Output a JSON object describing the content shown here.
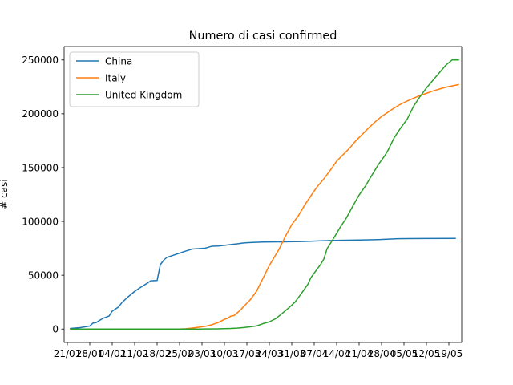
{
  "chart_data": {
    "type": "line",
    "title": "Numero di casi confirmed",
    "xlabel": "",
    "ylabel": "# casi",
    "x_tick_labels": [
      "21/01",
      "28/01",
      "04/02",
      "11/02",
      "18/02",
      "25/02",
      "03/03",
      "10/03",
      "17/03",
      "24/03",
      "31/03",
      "07/04",
      "14/04",
      "21/04",
      "28/04",
      "05/05",
      "12/05",
      "19/05"
    ],
    "y_tick_labels": [
      "0",
      "50000",
      "100000",
      "150000",
      "200000",
      "250000"
    ],
    "y_ticks": [
      0,
      50000,
      100000,
      150000,
      200000,
      250000
    ],
    "x_range_days": [
      -2,
      122
    ],
    "ylim": [
      -12500,
      262500
    ],
    "x_start_date": "2020-01-22",
    "grid": false,
    "legend_position": "top-left",
    "series": [
      {
        "name": "China",
        "color": "#1f77b4",
        "points": [
          [
            0,
            548
          ],
          [
            3,
            1300
          ],
          [
            6,
            2800
          ],
          [
            7,
            5500
          ],
          [
            8,
            6000
          ],
          [
            10,
            9800
          ],
          [
            12,
            12000
          ],
          [
            13,
            16600
          ],
          [
            15,
            20600
          ],
          [
            16,
            24500
          ],
          [
            18,
            30000
          ],
          [
            20,
            35000
          ],
          [
            22,
            39000
          ],
          [
            24,
            42700
          ],
          [
            25,
            44800
          ],
          [
            27,
            45100
          ],
          [
            28,
            59800
          ],
          [
            29,
            63800
          ],
          [
            30,
            66500
          ],
          [
            32,
            68500
          ],
          [
            34,
            70500
          ],
          [
            36,
            72500
          ],
          [
            38,
            74300
          ],
          [
            40,
            74700
          ],
          [
            42,
            75100
          ],
          [
            44,
            76900
          ],
          [
            46,
            77100
          ],
          [
            48,
            77800
          ],
          [
            50,
            78500
          ],
          [
            52,
            79200
          ],
          [
            54,
            80000
          ],
          [
            56,
            80400
          ],
          [
            60,
            80800
          ],
          [
            66,
            81000
          ],
          [
            72,
            81300
          ],
          [
            78,
            82000
          ],
          [
            84,
            82400
          ],
          [
            90,
            82700
          ],
          [
            96,
            83100
          ],
          [
            102,
            83900
          ],
          [
            110,
            84100
          ],
          [
            120,
            84200
          ]
        ]
      },
      {
        "name": "Italy",
        "color": "#ff7f0e",
        "points": [
          [
            0,
            0
          ],
          [
            30,
            0
          ],
          [
            32,
            3
          ],
          [
            34,
            3
          ],
          [
            36,
            300
          ],
          [
            38,
            900
          ],
          [
            40,
            1700
          ],
          [
            42,
            2500
          ],
          [
            44,
            3900
          ],
          [
            46,
            6000
          ],
          [
            48,
            9000
          ],
          [
            49,
            10000
          ],
          [
            50,
            12000
          ],
          [
            51,
            12500
          ],
          [
            52,
            15000
          ],
          [
            53,
            17600
          ],
          [
            54,
            21000
          ],
          [
            56,
            27000
          ],
          [
            58,
            35000
          ],
          [
            60,
            47000
          ],
          [
            62,
            59000
          ],
          [
            64,
            69000
          ],
          [
            65,
            74000
          ],
          [
            66,
            80000
          ],
          [
            67,
            86000
          ],
          [
            69,
            97000
          ],
          [
            71,
            105000
          ],
          [
            73,
            115000
          ],
          [
            75,
            124000
          ],
          [
            77,
            132500
          ],
          [
            79,
            139500
          ],
          [
            81,
            147500
          ],
          [
            83,
            156000
          ],
          [
            85,
            162000
          ],
          [
            87,
            168000
          ],
          [
            89,
            175000
          ],
          [
            91,
            181000
          ],
          [
            93,
            187000
          ],
          [
            95,
            192500
          ],
          [
            97,
            197500
          ],
          [
            99,
            201500
          ],
          [
            101,
            205500
          ],
          [
            103,
            209000
          ],
          [
            105,
            211900
          ],
          [
            107,
            214500
          ],
          [
            109,
            217000
          ],
          [
            111,
            219000
          ],
          [
            113,
            221200
          ],
          [
            115,
            222900
          ],
          [
            117,
            224700
          ],
          [
            119,
            225900
          ],
          [
            121,
            227100
          ]
        ]
      },
      {
        "name": "United Kingdom",
        "color": "#2ca02c",
        "points": [
          [
            0,
            0
          ],
          [
            40,
            0
          ],
          [
            42,
            40
          ],
          [
            46,
            200
          ],
          [
            50,
            500
          ],
          [
            52,
            800
          ],
          [
            54,
            1400
          ],
          [
            56,
            2000
          ],
          [
            58,
            2900
          ],
          [
            59,
            3900
          ],
          [
            60,
            5000
          ],
          [
            62,
            6700
          ],
          [
            64,
            9600
          ],
          [
            66,
            14500
          ],
          [
            68,
            19500
          ],
          [
            70,
            25000
          ],
          [
            72,
            33000
          ],
          [
            74,
            41500
          ],
          [
            75,
            47800
          ],
          [
            76,
            52000
          ],
          [
            78,
            60000
          ],
          [
            79,
            65000
          ],
          [
            80,
            74600
          ],
          [
            82,
            84000
          ],
          [
            84,
            94000
          ],
          [
            86,
            103000
          ],
          [
            88,
            114000
          ],
          [
            90,
            124500
          ],
          [
            92,
            133000
          ],
          [
            94,
            143000
          ],
          [
            96,
            152800
          ],
          [
            98,
            161000
          ],
          [
            99,
            166000
          ],
          [
            101,
            178000
          ],
          [
            103,
            187000
          ],
          [
            105,
            195000
          ],
          [
            107,
            207000
          ],
          [
            109,
            216000
          ],
          [
            111,
            224000
          ],
          [
            113,
            231000
          ],
          [
            115,
            238000
          ],
          [
            117,
            245000
          ],
          [
            119,
            250000
          ],
          [
            121,
            250000
          ]
        ]
      }
    ]
  }
}
